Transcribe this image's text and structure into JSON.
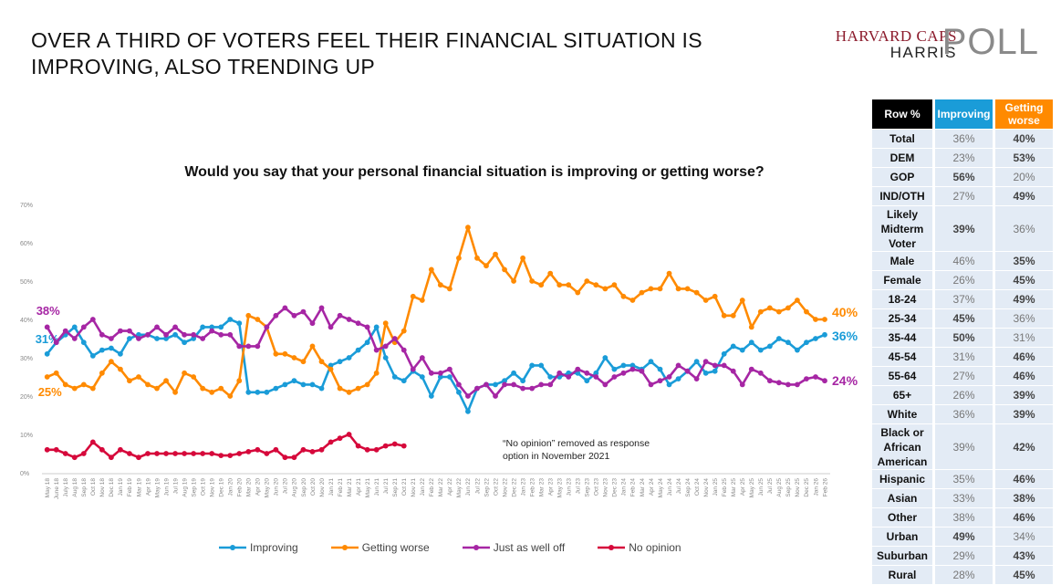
{
  "title": "OVER A THIRD OF VOTERS FEEL THEIR FINANCIAL SITUATION IS IMPROVING, ALSO TRENDING UP",
  "logo": {
    "line1": "HARVARD CAPS",
    "line2": "HARRIS",
    "line3": "POLL"
  },
  "note": [
    "“No opinion” removed as response",
    "option in November 2021"
  ],
  "chart_data": {
    "type": "line",
    "title": "Would you say that your personal financial situation is improving or getting worse?",
    "ylim": [
      0,
      70
    ],
    "yticks": [
      "0%",
      "10%",
      "20%",
      "30%",
      "40%",
      "50%",
      "60%",
      "70%"
    ],
    "grid": false,
    "legend_position": "bottom",
    "categories": [
      "May 18",
      "June 18",
      "July 18",
      "Aug 18",
      "Sep 18",
      "Oct 18",
      "Nov 18",
      "Dec 18",
      "Jan 19",
      "Feb 19",
      "Mar 19",
      "Apr 19",
      "May 19",
      "Jun 19",
      "Jul 19",
      "Aug 19",
      "Sep 19",
      "Oct 19",
      "Nov 19",
      "Dec 19",
      "Jan 20",
      "Feb 20",
      "Mar 20",
      "Apr 20",
      "May 20",
      "Jun 20",
      "Jul 20",
      "Aug 20",
      "Sep 20",
      "Oct 20",
      "Nov 20",
      "Jan 21",
      "Feb 21",
      "Mar 21",
      "Apr 21",
      "May 21",
      "Jun 21",
      "Jul 21",
      "Sep 21",
      "Oct 21",
      "Nov 21",
      "Jan 22",
      "Feb 22",
      "Mar 22",
      "Apr 22",
      "May 22",
      "Jun 22",
      "Jul 22",
      "Sep 22",
      "Oct 22",
      "Nov 22",
      "Dec 22",
      "Jan 23",
      "Feb 23",
      "Mar 23",
      "Apr 23",
      "May 23",
      "Jun 23",
      "Jul 23",
      "Sep 23",
      "Oct 23",
      "Nov 23",
      "Dec 23",
      "Jan 24",
      "Feb 24",
      "Mar 24",
      "Apr 24",
      "May 24",
      "Jun 24",
      "Jul 24",
      "Sep 24",
      "Oct 24",
      "Nov 24",
      "Jan 25",
      "Feb 25",
      "Mar 25",
      "Apr 25",
      "May 25",
      "Jun 25",
      "Jul 25",
      "Aug 25",
      "Sep 25",
      "Nov 25",
      "Dec 25",
      "Jan 26",
      "Feb 26"
    ],
    "series": [
      {
        "name": "Improving",
        "color": "#1a9cd8",
        "values": [
          31,
          34,
          36,
          38,
          34,
          30.5,
          32,
          32.5,
          31,
          35,
          36,
          36,
          35,
          35,
          36,
          34,
          35,
          38,
          38,
          38,
          40,
          39,
          21,
          21,
          21,
          22,
          23,
          24,
          23,
          23,
          22,
          28,
          29,
          30,
          32,
          34,
          38,
          30,
          25,
          24,
          26.5,
          25,
          20,
          25,
          25,
          21,
          16,
          22,
          23,
          23,
          24,
          26,
          24,
          28,
          28,
          25,
          25,
          26,
          26,
          24,
          26,
          30,
          27,
          28,
          28,
          27,
          29,
          27,
          23,
          24.5,
          26.5,
          29,
          26,
          26.5,
          31,
          33,
          32,
          34,
          32,
          33,
          35,
          34,
          32,
          34,
          35,
          36
        ],
        "start_label": "31%",
        "end_label": "36%"
      },
      {
        "name": "Getting worse",
        "color": "#ff8a00",
        "values": [
          25,
          26,
          23,
          22,
          23,
          22,
          26,
          29,
          27,
          24,
          25,
          23,
          22,
          24,
          21,
          26,
          25,
          22,
          21,
          22,
          20,
          24,
          41,
          40,
          38,
          31,
          31,
          30,
          29,
          33,
          29,
          27,
          22,
          21,
          22,
          23,
          26,
          39,
          34,
          37,
          46,
          45,
          53,
          49,
          48,
          56,
          64,
          56,
          54,
          57,
          53,
          50,
          56,
          50,
          49,
          52,
          49,
          49,
          47,
          50,
          49,
          48,
          49,
          46,
          45,
          47,
          48,
          48,
          52,
          48,
          48,
          47,
          45,
          46,
          41,
          41,
          45,
          38,
          42,
          43,
          42,
          43,
          45,
          42,
          40,
          40
        ],
        "start_label": "25%",
        "end_label": "40%"
      },
      {
        "name": "Just as well off",
        "color": "#a626a4",
        "values": [
          38,
          34,
          37,
          35,
          38,
          40,
          36,
          35,
          37,
          37,
          35,
          36,
          38,
          36,
          38,
          36,
          36,
          35,
          37,
          36,
          36,
          33,
          33,
          33,
          38,
          41,
          43,
          41,
          42,
          39,
          43,
          38,
          41,
          40,
          39,
          38,
          32,
          33,
          35,
          32,
          27,
          30,
          26,
          26,
          27,
          23,
          20,
          22,
          23,
          20,
          23,
          23,
          22,
          22,
          23,
          23,
          26,
          25,
          27,
          26,
          25,
          23,
          25,
          26,
          27,
          26.5,
          23,
          24,
          25,
          28,
          26.5,
          24.5,
          29,
          28,
          28,
          26.5,
          23,
          27,
          26,
          24,
          23.5,
          23,
          23,
          24.5,
          25,
          24
        ],
        "start_label": "38%",
        "end_label": "24%"
      },
      {
        "name": "No opinion",
        "color": "#d6083b",
        "values": [
          6,
          6,
          5,
          4,
          5,
          8,
          6,
          4,
          6,
          5,
          4,
          5,
          5,
          5,
          5,
          5,
          5,
          5,
          5,
          4.5,
          4.5,
          5,
          5.5,
          6,
          5,
          6,
          4,
          4,
          6,
          5.5,
          6,
          8,
          9,
          10,
          7,
          6,
          6,
          7,
          7.5,
          7,
          null,
          null,
          null,
          null,
          null,
          null,
          null,
          null,
          null,
          null,
          null,
          null,
          null,
          null,
          null,
          null,
          null,
          null,
          null,
          null,
          null,
          null,
          null,
          null,
          null,
          null,
          null,
          null,
          null,
          null,
          null,
          null,
          null,
          null,
          null,
          null,
          null,
          null,
          null,
          null,
          null,
          null,
          null,
          null,
          null,
          null
        ]
      }
    ]
  },
  "table": {
    "headers": [
      "Row %",
      "Improving",
      "Getting worse"
    ],
    "header_colors": [
      "#000000",
      "#1a9cd8",
      "#ff8a00"
    ],
    "rows": [
      {
        "label": "Total",
        "improving": "36%",
        "worse": "40%",
        "bold": "worse"
      },
      {
        "label": "DEM",
        "improving": "23%",
        "worse": "53%",
        "bold": "worse"
      },
      {
        "label": "GOP",
        "improving": "56%",
        "worse": "20%",
        "bold": "improving"
      },
      {
        "label": "IND/OTH",
        "improving": "27%",
        "worse": "49%",
        "bold": "worse"
      },
      {
        "label": "Likely Midterm Voter",
        "improving": "39%",
        "worse": "36%",
        "bold": "improving"
      },
      {
        "label": "Male",
        "improving": "46%",
        "worse": "35%",
        "bold": "worse"
      },
      {
        "label": "Female",
        "improving": "26%",
        "worse": "45%",
        "bold": "worse"
      },
      {
        "label": "18-24",
        "improving": "37%",
        "worse": "49%",
        "bold": "worse"
      },
      {
        "label": "25-34",
        "improving": "45%",
        "worse": "36%",
        "bold": "improving"
      },
      {
        "label": "35-44",
        "improving": "50%",
        "worse": "31%",
        "bold": "improving"
      },
      {
        "label": "45-54",
        "improving": "31%",
        "worse": "46%",
        "bold": "worse"
      },
      {
        "label": "55-64",
        "improving": "27%",
        "worse": "46%",
        "bold": "worse"
      },
      {
        "label": "65+",
        "improving": "26%",
        "worse": "39%",
        "bold": "worse"
      },
      {
        "label": "White",
        "improving": "36%",
        "worse": "39%",
        "bold": "worse"
      },
      {
        "label": "Black or African American",
        "improving": "39%",
        "worse": "42%",
        "bold": "worse"
      },
      {
        "label": "Hispanic",
        "improving": "35%",
        "worse": "46%",
        "bold": "worse"
      },
      {
        "label": "Asian",
        "improving": "33%",
        "worse": "38%",
        "bold": "worse"
      },
      {
        "label": "Other",
        "improving": "38%",
        "worse": "46%",
        "bold": "worse"
      },
      {
        "label": "Urban",
        "improving": "49%",
        "worse": "34%",
        "bold": "improving"
      },
      {
        "label": "Suburban",
        "improving": "29%",
        "worse": "43%",
        "bold": "worse"
      },
      {
        "label": "Rural",
        "improving": "28%",
        "worse": "45%",
        "bold": "worse"
      }
    ]
  }
}
